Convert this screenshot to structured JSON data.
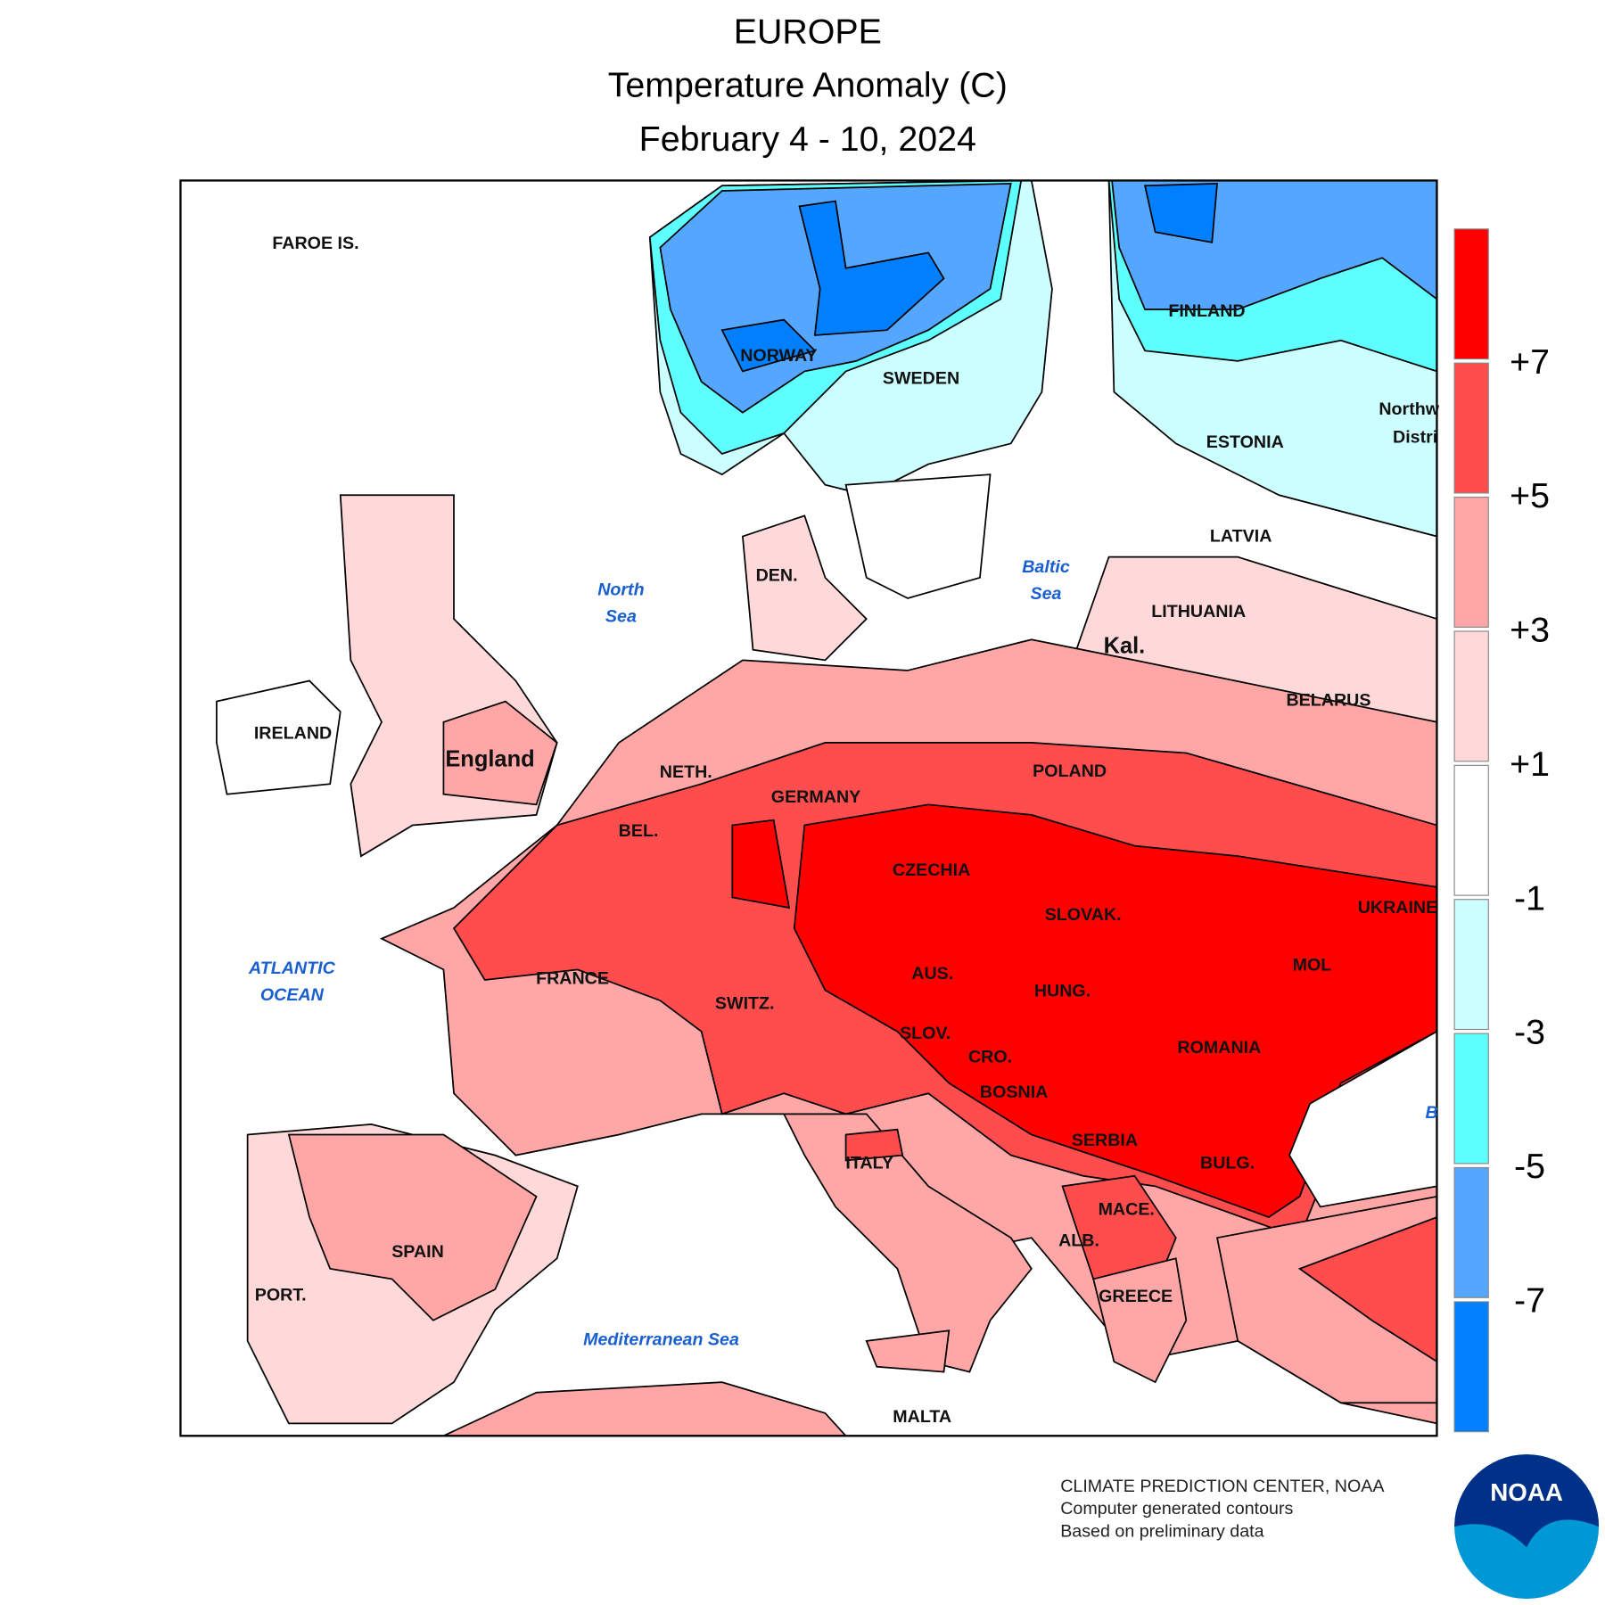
{
  "header": {
    "title": "EUROPE",
    "subtitle": "Temperature Anomaly (C)",
    "period": "February 4 - 10, 2024"
  },
  "map": {
    "country_labels": [
      "FAROE IS.",
      "NORWAY",
      "SWEDEN",
      "FINLAND",
      "ESTONIA",
      "LATVIA",
      "LITHUANIA",
      "Kal.",
      "BELARUS",
      "DEN.",
      "IRELAND",
      "England",
      "NETH.",
      "BEL.",
      "GERMANY",
      "POLAND",
      "CZECHIA",
      "SLOVAK.",
      "UKRAINE",
      "AUS.",
      "HUNG.",
      "MOL",
      "ROMANIA",
      "SWITZ.",
      "FRANCE",
      "SLOV.",
      "CRO.",
      "BOSNIA",
      "SERBIA",
      "BULG.",
      "MACE.",
      "ALB.",
      "GREECE",
      "ITALY",
      "SPAIN",
      "PORT.",
      "MALTA",
      "Northw",
      "Distri"
    ],
    "sea_labels": [
      "North",
      "Sea",
      "Baltic",
      "Sea",
      "ATLANTIC",
      "OCEAN",
      "Mediterranean Sea",
      "B"
    ]
  },
  "legend": {
    "colors": [
      "#ff0000",
      "#ff4d4d",
      "#ffa6a6",
      "#ffd9d9",
      "#ffffff",
      "#ccffff",
      "#5effff",
      "#55a6ff",
      "#0080ff"
    ],
    "ticks": [
      "+7",
      "+5",
      "+3",
      "+1",
      "-1",
      "-3",
      "-5",
      "-7"
    ]
  },
  "credits": [
    "CLIMATE PREDICTION CENTER, NOAA",
    "Computer generated contours",
    "Based on preliminary data"
  ],
  "logo_text": "NOAA"
}
